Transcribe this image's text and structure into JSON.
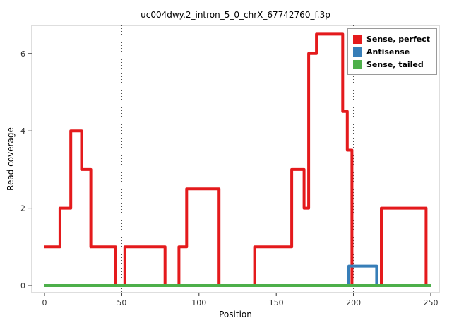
{
  "chart_data": {
    "type": "line",
    "title": "uc004dwy.2_intron_5_0_chrX_67742760_f.3p",
    "xlabel": "Position",
    "ylabel": "Read coverage",
    "xlim": [
      0,
      250
    ],
    "ylim": [
      0,
      6.7
    ],
    "x_ticks": [
      0,
      50,
      100,
      150,
      200,
      250
    ],
    "y_ticks": [
      0,
      2,
      4,
      6
    ],
    "vlines": [
      50,
      200
    ],
    "grid": false,
    "legend_position": "top-right",
    "panel_border_color": "#bdbdbd",
    "tick_label_color": "#333333",
    "series": [
      {
        "name": "Sense, perfect",
        "color": "#e41a1c",
        "style": "step",
        "points": [
          [
            0,
            1
          ],
          [
            10,
            1
          ],
          [
            10,
            2
          ],
          [
            17,
            2
          ],
          [
            17,
            4
          ],
          [
            24,
            4
          ],
          [
            24,
            3
          ],
          [
            30,
            3
          ],
          [
            30,
            1
          ],
          [
            46,
            1
          ],
          [
            46,
            0
          ],
          [
            52,
            0
          ],
          [
            52,
            1
          ],
          [
            78,
            1
          ],
          [
            78,
            0
          ],
          [
            87,
            0
          ],
          [
            87,
            1
          ],
          [
            92,
            1
          ],
          [
            92,
            2.5
          ],
          [
            113,
            2.5
          ],
          [
            113,
            0
          ],
          [
            136,
            0
          ],
          [
            136,
            1
          ],
          [
            160,
            1
          ],
          [
            160,
            3
          ],
          [
            168,
            3
          ],
          [
            168,
            2
          ],
          [
            171,
            2
          ],
          [
            171,
            6
          ],
          [
            176,
            6
          ],
          [
            176,
            6.5
          ],
          [
            193,
            6.5
          ],
          [
            193,
            4.5
          ],
          [
            196,
            4.5
          ],
          [
            196,
            3.5
          ],
          [
            199,
            3.5
          ],
          [
            199,
            0
          ],
          [
            218,
            0
          ],
          [
            218,
            2
          ],
          [
            247,
            2
          ],
          [
            247,
            0
          ],
          [
            250,
            0
          ]
        ]
      },
      {
        "name": "Antisense",
        "color": "#377eb8",
        "style": "step",
        "points": [
          [
            197,
            0
          ],
          [
            197,
            0.5
          ],
          [
            215,
            0.5
          ],
          [
            215,
            0
          ]
        ]
      },
      {
        "name": "Sense, tailed",
        "color": "#4daf4a",
        "style": "step",
        "points": [
          [
            0,
            0
          ],
          [
            250,
            0
          ]
        ]
      }
    ]
  }
}
